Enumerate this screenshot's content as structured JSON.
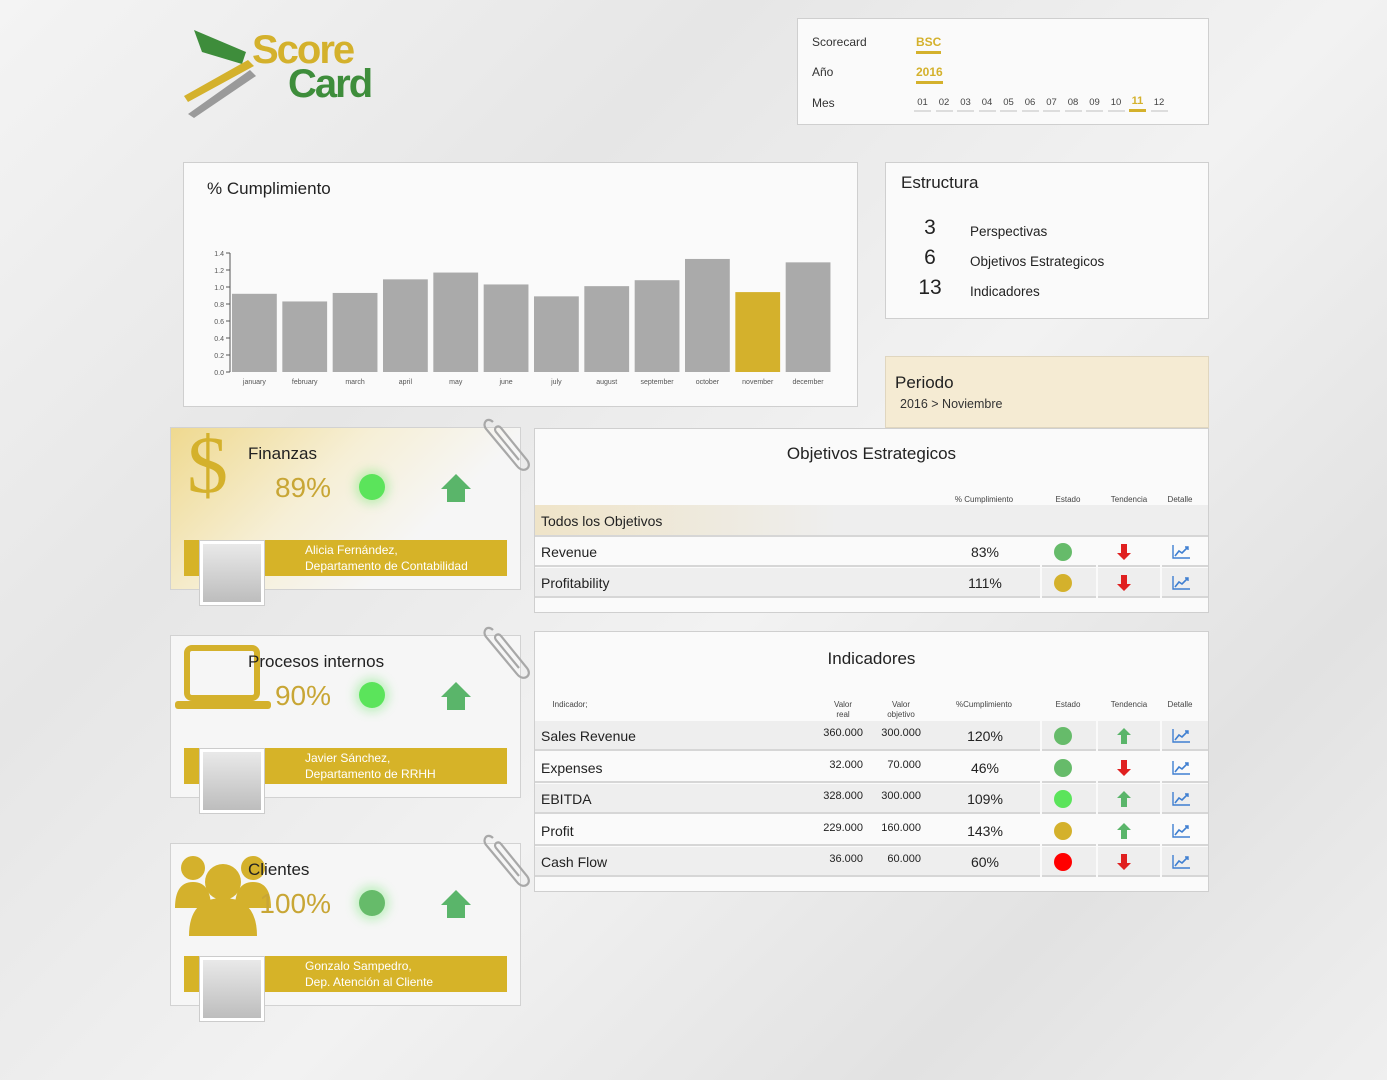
{
  "logo": {
    "line1": "Score",
    "line2": "Card",
    "colors": {
      "green": "#3e8d3b",
      "yellow": "#d4b12c",
      "gray": "#9a9a9a"
    }
  },
  "selector": {
    "scorecard_label": "Scorecard",
    "scorecard_value": "BSC",
    "year_label": "Año",
    "year_value": "2016",
    "month_label": "Mes",
    "months": [
      "01",
      "02",
      "03",
      "04",
      "05",
      "06",
      "07",
      "08",
      "09",
      "10",
      "11",
      "12"
    ],
    "selected_month": "11"
  },
  "cumplimiento": {
    "title": "% Cumplimiento"
  },
  "chart_data": {
    "type": "bar",
    "categories": [
      "january",
      "february",
      "march",
      "april",
      "may",
      "june",
      "july",
      "august",
      "september",
      "october",
      "november",
      "december"
    ],
    "values": [
      0.92,
      0.83,
      0.93,
      1.09,
      1.17,
      1.03,
      0.89,
      1.01,
      1.08,
      1.33,
      0.94,
      1.29
    ],
    "highlight_index": 10,
    "ylim": [
      0,
      1.4
    ],
    "yticks": [
      "0.0",
      "0.2",
      "0.4",
      "0.6",
      "0.8",
      "1.0",
      "1.2",
      "1.4"
    ],
    "colors": {
      "bar": "#aaaaaa",
      "highlight": "#d4b12c"
    }
  },
  "estructura": {
    "title": "Estructura",
    "items": [
      {
        "count": "3",
        "label": "Perspectivas"
      },
      {
        "count": "6",
        "label": "Objetivos Estrategicos"
      },
      {
        "count": "13",
        "label": "Indicadores"
      }
    ]
  },
  "periodo": {
    "title": "Periodo",
    "value": "2016 > Noviembre"
  },
  "perspectives": [
    {
      "title": "Finanzas",
      "pct": "89%",
      "status": "#5be45b",
      "icon": "dollar-icon",
      "person": "Alicia Fernández,",
      "dept": "Departamento de Contabilidad"
    },
    {
      "title": "Procesos internos",
      "pct": "90%",
      "status": "#5be45b",
      "icon": "laptop-icon",
      "person": "Javier Sánchez,",
      "dept": "Departamento de RRHH"
    },
    {
      "title": "Clientes",
      "pct": "100%",
      "status": "#66bb6a",
      "icon": "users-icon",
      "person": "Gonzalo Sampedro,",
      "dept": "Dep. Atención al Cliente"
    }
  ],
  "objetivos": {
    "title": "Objetivos Estrategicos",
    "headers": {
      "pct": "% Cumplimiento",
      "estado": "Estado",
      "tendencia": "Tendencia",
      "detalle": "Detalle"
    },
    "group": "Todos los Objetivos",
    "rows": [
      {
        "name": "Revenue",
        "pct": "83%",
        "status": "#66bb6a",
        "trend": "down"
      },
      {
        "name": "Profitability",
        "pct": "111%",
        "status": "#d4b12c",
        "trend": "down"
      }
    ]
  },
  "indicadores": {
    "title": "Indicadores",
    "headers": {
      "indicador": "Indicador;",
      "valor_real_1": "Valor",
      "valor_real_2": "real",
      "valor_obj_1": "Valor",
      "valor_obj_2": "objetivo",
      "pct": "%Cumplimiento",
      "estado": "Estado",
      "tendencia": "Tendencia",
      "detalle": "Detalle"
    },
    "rows": [
      {
        "name": "Sales Revenue",
        "real": "360.000",
        "obj": "300.000",
        "pct": "120%",
        "status": "#66bb6a",
        "trend": "up"
      },
      {
        "name": "Expenses",
        "real": "32.000",
        "obj": "70.000",
        "pct": "46%",
        "status": "#66bb6a",
        "trend": "down"
      },
      {
        "name": "EBITDA",
        "real": "328.000",
        "obj": "300.000",
        "pct": "109%",
        "status": "#5be45b",
        "trend": "up"
      },
      {
        "name": "Profit",
        "real": "229.000",
        "obj": "160.000",
        "pct": "143%",
        "status": "#d4b12c",
        "trend": "up"
      },
      {
        "name": "Cash Flow",
        "real": "36.000",
        "obj": "60.000",
        "pct": "60%",
        "status": "#ff0000",
        "trend": "down"
      }
    ]
  }
}
